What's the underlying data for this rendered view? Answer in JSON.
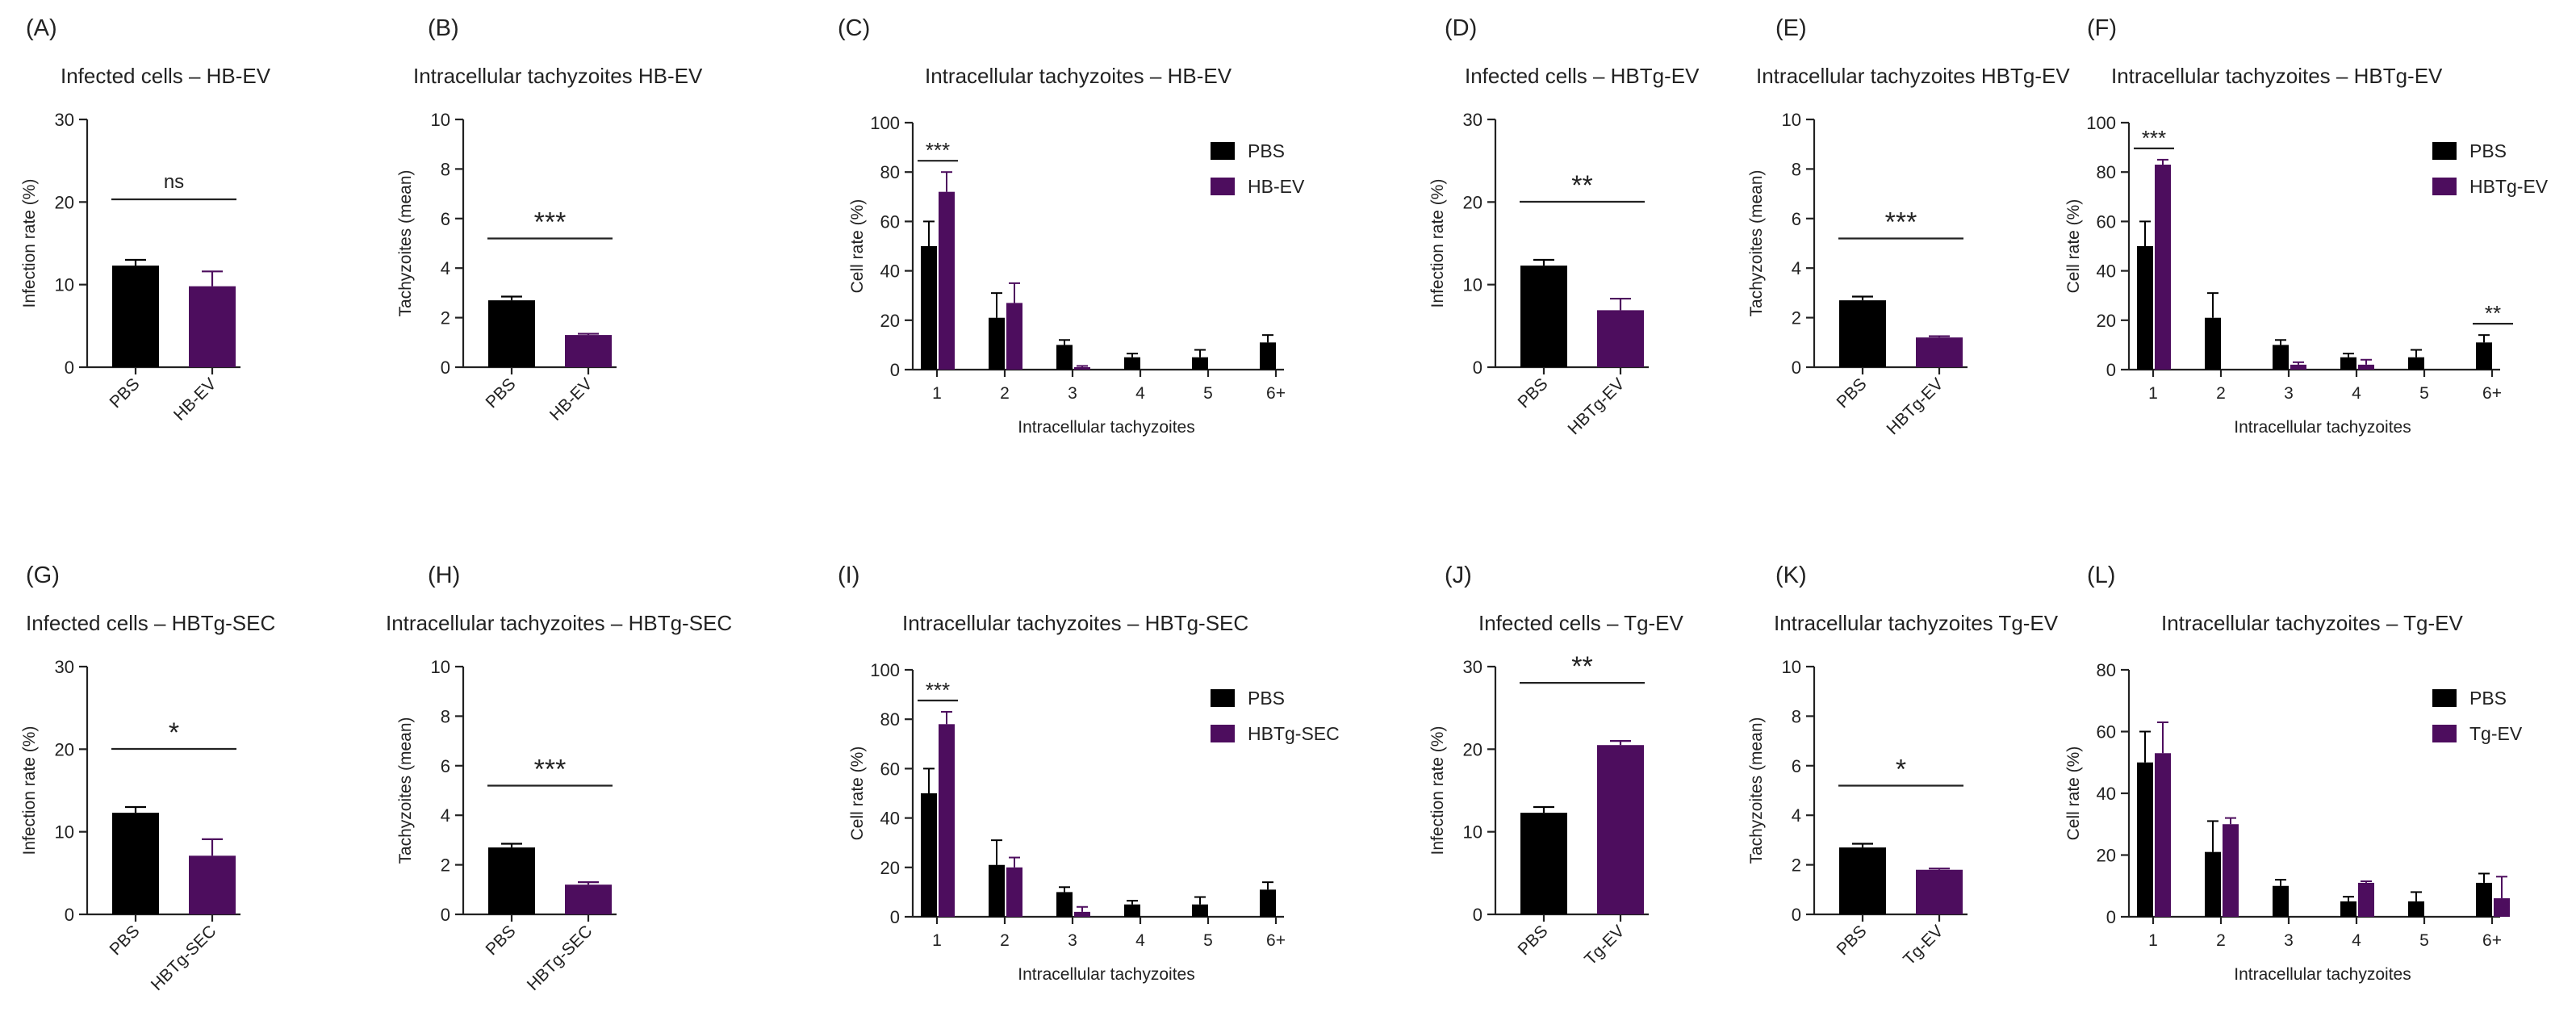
{
  "colors": {
    "ctrl": "#000000",
    "trt": "#4d0d5e",
    "axis": "#222222"
  },
  "chart_data": [
    {
      "id": "A",
      "type": "bar",
      "letter": "(A)",
      "title": "Infected cells – HB-EV",
      "categories": [
        "PBS",
        "HB-EV"
      ],
      "values": [
        12.3,
        9.8
      ],
      "errors": [
        0.7,
        1.8
      ],
      "ylabel": "Infection rate (%)",
      "ylim": [
        0,
        30
      ],
      "yticks": [
        0,
        10,
        20,
        30
      ],
      "sig": "ns"
    },
    {
      "id": "B",
      "type": "bar",
      "letter": "(B)",
      "title": "Intracellular tachyzoites HB-EV",
      "categories": [
        "PBS",
        "HB-EV"
      ],
      "values": [
        2.7,
        1.3
      ],
      "errors": [
        0.15,
        0.05
      ],
      "ylabel": "Tachyzoites (mean)",
      "ylim": [
        0,
        10
      ],
      "yticks": [
        0,
        2,
        4,
        6,
        8,
        10
      ],
      "sig": "***"
    },
    {
      "id": "C",
      "type": "bar",
      "letter": "(C)",
      "title": "Intracellular tachyzoites – HB-EV",
      "categories": [
        "1",
        "2",
        "3",
        "4",
        "5",
        "6+"
      ],
      "series": [
        {
          "name": "PBS",
          "values": [
            50,
            21,
            10,
            5,
            5,
            11
          ],
          "errors": [
            10,
            10,
            2,
            1.5,
            3,
            3
          ]
        },
        {
          "name": "HB-EV",
          "values": [
            72,
            27,
            1,
            0,
            0,
            0
          ],
          "errors": [
            8,
            8,
            0.5,
            0,
            0,
            0
          ]
        }
      ],
      "xlabel": "Intracellular tachyzoites",
      "ylabel": "Cell rate (%)",
      "ylim": [
        0,
        100
      ],
      "yticks": [
        0,
        20,
        40,
        60,
        80,
        100
      ],
      "sig": [
        {
          "cat": 0,
          "label": "***"
        }
      ]
    },
    {
      "id": "D",
      "type": "bar",
      "letter": "(D)",
      "title": "Infected cells – HBTg-EV",
      "categories": [
        "PBS",
        "HBTg-EV"
      ],
      "values": [
        12.3,
        6.9
      ],
      "errors": [
        0.7,
        1.4
      ],
      "ylabel": "Infection rate (%)",
      "ylim": [
        0,
        30
      ],
      "yticks": [
        0,
        10,
        20,
        30
      ],
      "sig": "**"
    },
    {
      "id": "E",
      "type": "bar",
      "letter": "(E)",
      "title": "Intracellular tachyzoites HBTg-EV",
      "categories": [
        "PBS",
        "HBTg-EV"
      ],
      "values": [
        2.7,
        1.2
      ],
      "errors": [
        0.15,
        0.05
      ],
      "ylabel": "Tachyzoites (mean)",
      "ylim": [
        0,
        10
      ],
      "yticks": [
        0,
        2,
        4,
        6,
        8,
        10
      ],
      "sig": "***"
    },
    {
      "id": "F",
      "type": "bar",
      "letter": "(F)",
      "title": "Intracellular tachyzoites – HBTg-EV",
      "categories": [
        "1",
        "2",
        "3",
        "4",
        "5",
        "6+"
      ],
      "series": [
        {
          "name": "PBS",
          "values": [
            50,
            21,
            10,
            5,
            5,
            11
          ],
          "errors": [
            10,
            10,
            2,
            1.5,
            3,
            3
          ]
        },
        {
          "name": "HBTg-EV",
          "values": [
            83,
            0,
            2,
            2,
            0,
            0
          ],
          "errors": [
            2,
            0,
            1,
            2,
            0,
            0
          ]
        }
      ],
      "xlabel": "Intracellular tachyzoites",
      "ylabel": "Cell rate (%)",
      "ylim": [
        0,
        100
      ],
      "yticks": [
        0,
        20,
        40,
        60,
        80,
        100
      ],
      "sig": [
        {
          "cat": 0,
          "label": "***"
        },
        {
          "cat": 5,
          "label": "**"
        }
      ]
    },
    {
      "id": "G",
      "type": "bar",
      "letter": "(G)",
      "title": "Infected cells – HBTg-SEC",
      "categories": [
        "PBS",
        "HBTg-SEC"
      ],
      "values": [
        12.3,
        7.1
      ],
      "errors": [
        0.7,
        2.0
      ],
      "ylabel": "Infection rate (%)",
      "ylim": [
        0,
        30
      ],
      "yticks": [
        0,
        10,
        20,
        30
      ],
      "sig": "*"
    },
    {
      "id": "H",
      "type": "bar",
      "letter": "(H)",
      "title": "Intracellular tachyzoites – HBTg-SEC",
      "categories": [
        "PBS",
        "HBTg-SEC"
      ],
      "values": [
        2.7,
        1.2
      ],
      "errors": [
        0.15,
        0.1
      ],
      "ylabel": "Tachyzoites (mean)",
      "ylim": [
        0,
        10
      ],
      "yticks": [
        0,
        2,
        4,
        6,
        8,
        10
      ],
      "sig": "***"
    },
    {
      "id": "I",
      "type": "bar",
      "letter": "(I)",
      "title": "Intracellular tachyzoites – HBTg-SEC",
      "categories": [
        "1",
        "2",
        "3",
        "4",
        "5",
        "6+"
      ],
      "series": [
        {
          "name": "PBS",
          "values": [
            50,
            21,
            10,
            5,
            5,
            11
          ],
          "errors": [
            10,
            10,
            2,
            1.5,
            3,
            3
          ]
        },
        {
          "name": "HBTg-SEC",
          "values": [
            78,
            20,
            2,
            0,
            0,
            0
          ],
          "errors": [
            5,
            4,
            2,
            0,
            0,
            0
          ]
        }
      ],
      "xlabel": "Intracellular tachyzoites",
      "ylabel": "Cell rate (%)",
      "ylim": [
        0,
        100
      ],
      "yticks": [
        0,
        20,
        40,
        60,
        80,
        100
      ],
      "sig": [
        {
          "cat": 0,
          "label": "***"
        }
      ]
    },
    {
      "id": "J",
      "type": "bar",
      "letter": "(J)",
      "title": "Infected cells – Tg-EV",
      "categories": [
        "PBS",
        "Tg-EV"
      ],
      "values": [
        12.3,
        20.5
      ],
      "errors": [
        0.7,
        0.5
      ],
      "ylabel": "Infection rate (%)",
      "ylim": [
        0,
        30
      ],
      "yticks": [
        0,
        10,
        20,
        30
      ],
      "sig": "**"
    },
    {
      "id": "K",
      "type": "bar",
      "letter": "(K)",
      "title": "Intracellular tachyzoites Tg-EV",
      "categories": [
        "PBS",
        "Tg-EV"
      ],
      "values": [
        2.7,
        1.8
      ],
      "errors": [
        0.15,
        0.05
      ],
      "ylabel": "Tachyzoites (mean)",
      "ylim": [
        0,
        10
      ],
      "yticks": [
        0,
        2,
        4,
        6,
        8,
        10
      ],
      "sig": "*"
    },
    {
      "id": "L",
      "type": "bar",
      "letter": "(L)",
      "title": "Intracellular tachyzoites – Tg-EV",
      "categories": [
        "1",
        "2",
        "3",
        "4",
        "5",
        "6+"
      ],
      "series": [
        {
          "name": "PBS",
          "values": [
            50,
            21,
            10,
            5,
            5,
            11
          ],
          "errors": [
            10,
            10,
            2,
            1.5,
            3,
            3
          ]
        },
        {
          "name": "Tg-EV",
          "values": [
            53,
            30,
            0,
            11,
            0,
            6
          ],
          "errors": [
            10,
            2,
            0,
            0.5,
            0,
            7
          ]
        }
      ],
      "xlabel": "Intracellular tachyzoites",
      "ylabel": "Cell rate (%)",
      "ylim": [
        0,
        80
      ],
      "yticks": [
        0,
        20,
        40,
        60,
        80
      ],
      "sig": []
    }
  ]
}
